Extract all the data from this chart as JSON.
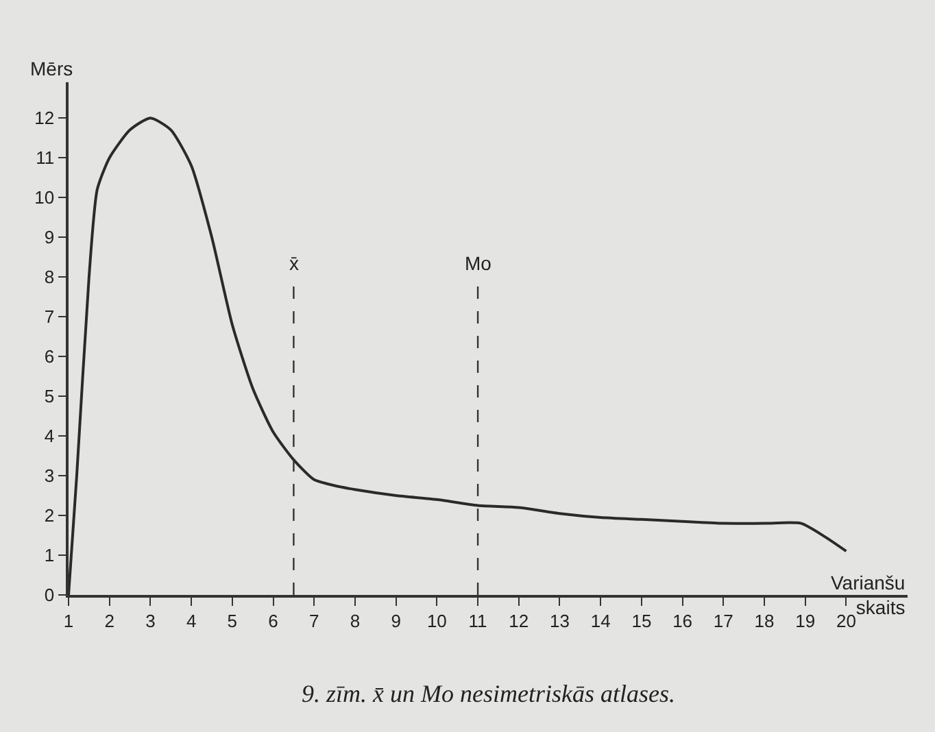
{
  "chart_data": {
    "type": "line",
    "ylabel": "Mērs",
    "xlabel": "Varianšu\nskaits",
    "x": [
      1,
      1.2,
      1.5,
      1.7,
      2,
      2.5,
      3,
      3.5,
      4,
      4.5,
      5,
      5.5,
      6,
      6.5,
      7,
      7.5,
      8,
      9,
      10,
      11,
      12,
      13,
      14,
      15,
      16,
      17,
      18,
      18.9,
      19.5,
      20
    ],
    "series": [
      {
        "color": "#2a2a2a",
        "values": [
          0,
          3,
          8,
          10.2,
          11,
          11.7,
          12,
          11.7,
          10.8,
          9,
          6.8,
          5.2,
          4.1,
          3.4,
          2.9,
          2.75,
          2.65,
          2.5,
          2.4,
          2.25,
          2.2,
          2.05,
          1.95,
          1.9,
          1.85,
          1.8,
          1.8,
          1.8,
          1.45,
          1.1
        ]
      }
    ],
    "xlim": [
      1,
      21.5
    ],
    "ylim": [
      0,
      12.9
    ],
    "xticks": [
      1,
      2,
      3,
      4,
      5,
      6,
      7,
      8,
      9,
      10,
      11,
      12,
      13,
      14,
      15,
      16,
      17,
      18,
      19,
      20
    ],
    "yticks": [
      0,
      1,
      2,
      3,
      4,
      5,
      6,
      7,
      8,
      9,
      10,
      11,
      12
    ],
    "ref_lines": [
      {
        "axis": "x",
        "value": 6.5,
        "label": "x̄",
        "line_style": "dashed"
      },
      {
        "axis": "x",
        "value": 11,
        "label": "Mo",
        "line_style": "dashed"
      }
    ],
    "annotations": [
      "9. zīm. x̄ un Mo nesimetriskās atlases."
    ],
    "grid": false,
    "legend": false,
    "marker": "none",
    "line_style": "solid"
  }
}
